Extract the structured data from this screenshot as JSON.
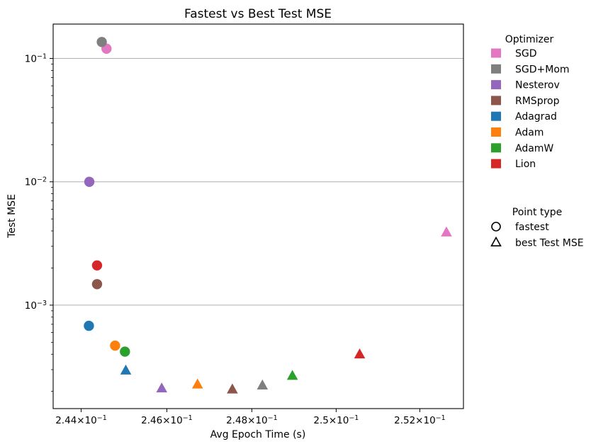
{
  "chart_data": {
    "type": "scatter",
    "title": "Fastest vs Best Test MSE",
    "xlabel": "Avg Epoch Time (s)",
    "ylabel": "Test MSE",
    "xscale": "log",
    "yscale": "log",
    "xlim": [
      0.24335,
      0.25305
    ],
    "ylim": [
      0.000145,
      0.19
    ],
    "xticks": [
      {
        "value": 0.244,
        "mantissa": "2.44",
        "sep": "×",
        "base": "10",
        "exp": "−1"
      },
      {
        "value": 0.246,
        "mantissa": "2.46",
        "sep": "×",
        "base": "10",
        "exp": "−1"
      },
      {
        "value": 0.248,
        "mantissa": "2.48",
        "sep": "×",
        "base": "10",
        "exp": "−1"
      },
      {
        "value": 0.25,
        "mantissa": "2.5",
        "sep": "×",
        "base": "10",
        "exp": "−1"
      },
      {
        "value": 0.252,
        "mantissa": "2.52",
        "sep": "×",
        "base": "10",
        "exp": "−1"
      }
    ],
    "yticks": [
      {
        "value": 0.001,
        "base": "10",
        "exp": "−3"
      },
      {
        "value": 0.01,
        "base": "10",
        "exp": "−2"
      },
      {
        "value": 0.1,
        "base": "10",
        "exp": "−1"
      }
    ],
    "grid": "y-major",
    "legend_placement": "outside right",
    "legend": {
      "title": "Optimizer",
      "entries": [
        {
          "name": "SGD",
          "color": "#e377c2"
        },
        {
          "name": "SGD+Mom",
          "color": "#7f7f7f"
        },
        {
          "name": "Nesterov",
          "color": "#9467bd"
        },
        {
          "name": "RMSprop",
          "color": "#8c564b"
        },
        {
          "name": "Adagrad",
          "color": "#1f77b4"
        },
        {
          "name": "Adam",
          "color": "#ff7f0e"
        },
        {
          "name": "AdamW",
          "color": "#2ca02c"
        },
        {
          "name": "Lion",
          "color": "#d62728"
        }
      ]
    },
    "marker_legend": {
      "title": "Point type",
      "entries": [
        {
          "name": "fastest",
          "marker": "circle"
        },
        {
          "name": "best Test MSE",
          "marker": "triangle"
        }
      ]
    },
    "series": [
      {
        "optimizer": "SGD",
        "color": "#e377c2",
        "fastest": {
          "x": 0.24459,
          "y": 0.12
        },
        "best": {
          "x": 0.25264,
          "y": 0.0039
        }
      },
      {
        "optimizer": "SGD+Mom",
        "color": "#7f7f7f",
        "fastest": {
          "x": 0.24448,
          "y": 0.136
        },
        "best": {
          "x": 0.24825,
          "y": 0.000224
        }
      },
      {
        "optimizer": "Nesterov",
        "color": "#9467bd",
        "fastest": {
          "x": 0.24419,
          "y": 0.01
        },
        "best": {
          "x": 0.24588,
          "y": 0.000212
        }
      },
      {
        "optimizer": "RMSprop",
        "color": "#8c564b",
        "fastest": {
          "x": 0.24437,
          "y": 0.00148
        },
        "best": {
          "x": 0.24754,
          "y": 0.000208
        }
      },
      {
        "optimizer": "Adagrad",
        "color": "#1f77b4",
        "fastest": {
          "x": 0.24418,
          "y": 0.00068
        },
        "best": {
          "x": 0.24504,
          "y": 0.000296
        }
      },
      {
        "optimizer": "Adam",
        "color": "#ff7f0e",
        "fastest": {
          "x": 0.24479,
          "y": 0.00047
        },
        "best": {
          "x": 0.24672,
          "y": 0.000228
        }
      },
      {
        "optimizer": "AdamW",
        "color": "#2ca02c",
        "fastest": {
          "x": 0.24502,
          "y": 0.00042
        },
        "best": {
          "x": 0.24896,
          "y": 0.000268
        }
      },
      {
        "optimizer": "Lion",
        "color": "#d62728",
        "fastest": {
          "x": 0.24437,
          "y": 0.0021
        },
        "best": {
          "x": 0.25056,
          "y": 0.0004
        }
      }
    ]
  }
}
